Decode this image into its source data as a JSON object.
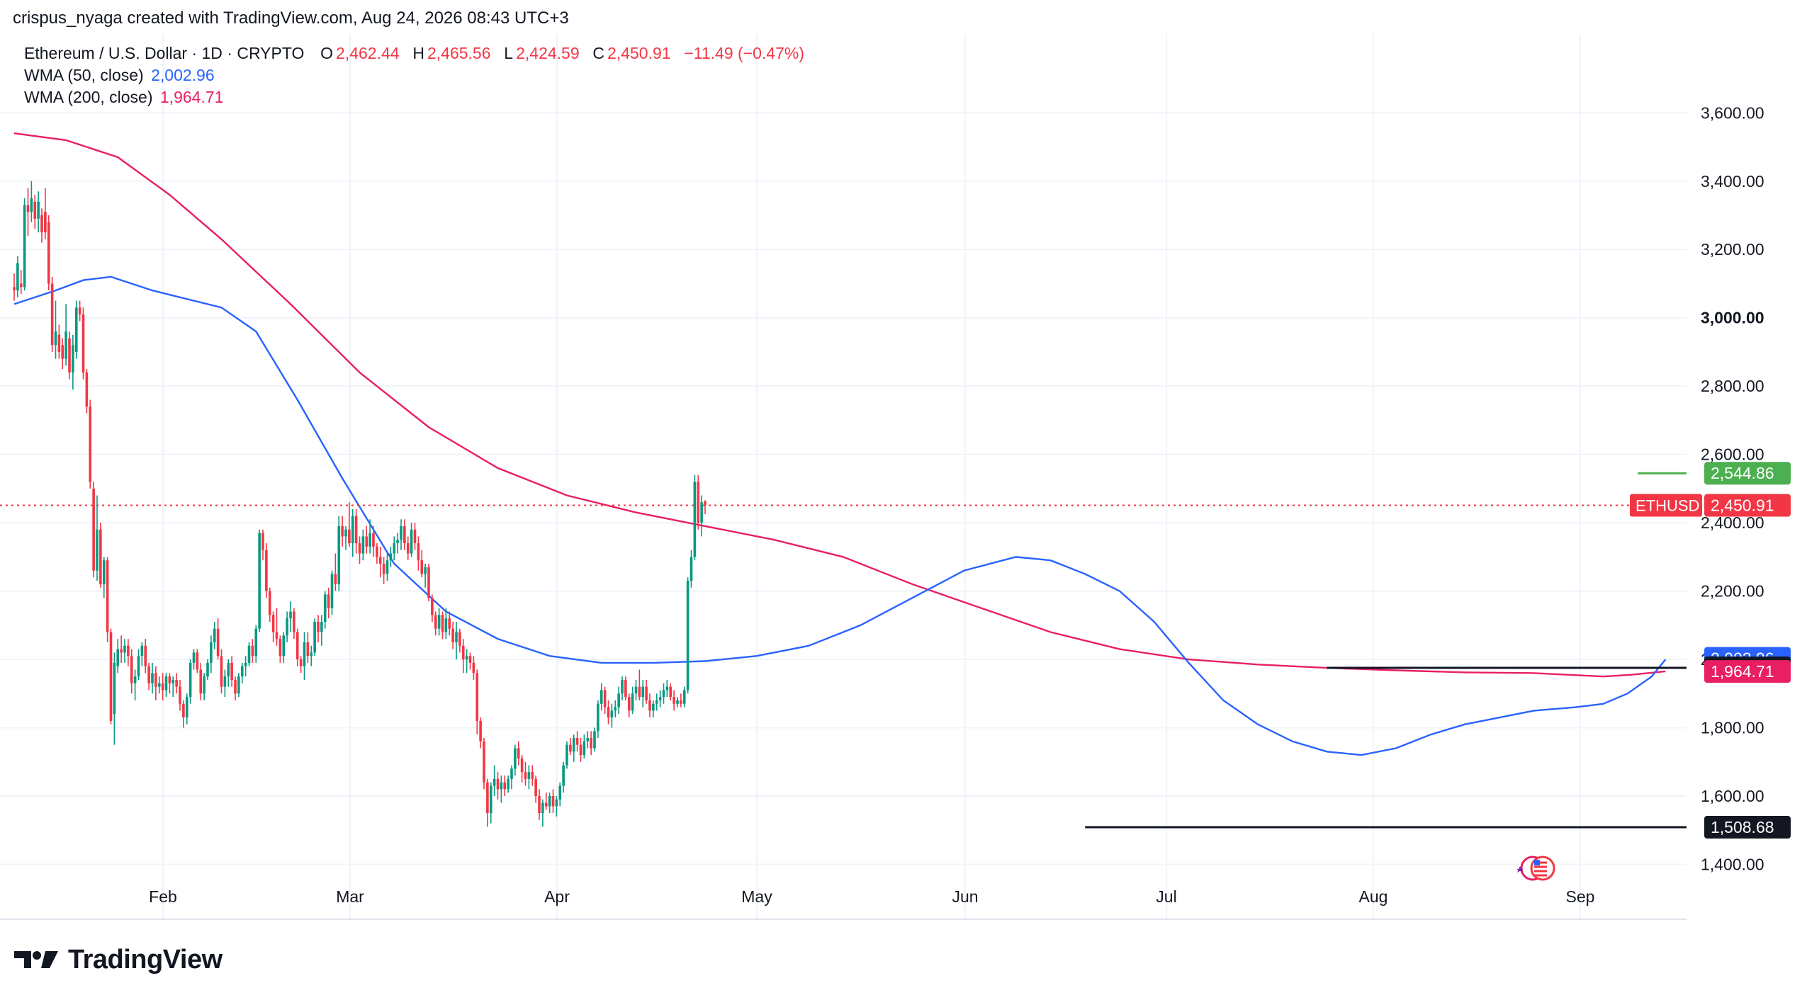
{
  "attribution": "crispus_nyaga created with TradingView.com, Aug 24, 2026 08:43 UTC+3",
  "legend": {
    "symbol": "Ethereum / U.S. Dollar · 1D · CRYPTO",
    "o_label": "O",
    "o_value": "2,462.44",
    "h_label": "H",
    "h_value": "2,465.56",
    "l_label": "L",
    "l_value": "2,424.59",
    "c_label": "C",
    "c_value": "2,450.91",
    "change": "−11.49 (−0.47%)",
    "wma50_label": "WMA (50, close)",
    "wma50_value": "2,002.96",
    "wma200_label": "WMA (200, close)",
    "wma200_value": "1,964.71"
  },
  "brand": {
    "name": "TradingView"
  },
  "colors": {
    "up": "#089981",
    "down": "#f23645",
    "up_wick": "#089981",
    "wma50": "#2962ff",
    "wma200": "#e91e63",
    "grid": "#f0f3fa",
    "last_price": "#f23645",
    "resistance_green": "#4caf50",
    "level_black": "#131722"
  },
  "chart_data": {
    "type": "candlestick",
    "symbol": "ETHUSD",
    "timeframe": "1D",
    "x_ticks": [
      "Feb",
      "Mar",
      "Apr",
      "May",
      "Jun",
      "Jul",
      "Aug",
      "Sep"
    ],
    "y_ticks": [
      "1,400.00",
      "1,600.00",
      "1,800.00",
      "2,000.00",
      "2,200.00",
      "2,400.00",
      "2,600.00",
      "2,800.00",
      "3,000.00",
      "3,200.00",
      "3,400.00",
      "3,600.00"
    ],
    "ylim": [
      1260,
      3810
    ],
    "grid": true,
    "price_labels": {
      "last": {
        "tag": "ETHUSD",
        "value": "2,450.91",
        "y": 2450.91
      },
      "high_level": {
        "value": "2,544.86",
        "y": 2544.86
      },
      "wma50": {
        "value": "2,002.96",
        "y": 2002.96
      },
      "level_mid": {
        "value": "1,975.32",
        "y": 1975.32
      },
      "wma200": {
        "value": "1,964.71",
        "y": 1964.71
      },
      "level_low": {
        "value": "1,508.68",
        "y": 1508.68
      }
    },
    "ohlc": [
      [
        3090,
        3130,
        3050,
        3080
      ],
      [
        3080,
        3180,
        3060,
        3160
      ],
      [
        3100,
        3140,
        3070,
        3090
      ],
      [
        3090,
        3350,
        3080,
        3330
      ],
      [
        3330,
        3380,
        3240,
        3310
      ],
      [
        3310,
        3400,
        3280,
        3350
      ],
      [
        3340,
        3360,
        3260,
        3290
      ],
      [
        3290,
        3370,
        3250,
        3340
      ],
      [
        3300,
        3320,
        3220,
        3250
      ],
      [
        3310,
        3380,
        3230,
        3250
      ],
      [
        3280,
        3300,
        3080,
        3100
      ],
      [
        3100,
        3120,
        2900,
        2920
      ],
      [
        2920,
        3050,
        2880,
        2960
      ],
      [
        2950,
        2980,
        2880,
        2900
      ],
      [
        2920,
        2940,
        2850,
        2880
      ],
      [
        2880,
        3040,
        2860,
        2960
      ],
      [
        2940,
        2960,
        2820,
        2840
      ],
      [
        2840,
        2950,
        2790,
        2920
      ],
      [
        2900,
        3050,
        2880,
        3030
      ],
      [
        3030,
        3050,
        2990,
        3010
      ],
      [
        3010,
        3030,
        2820,
        2840
      ],
      [
        2840,
        2850,
        2720,
        2740
      ],
      [
        2740,
        2760,
        2500,
        2520
      ],
      [
        2500,
        2520,
        2240,
        2260
      ],
      [
        2260,
        2480,
        2230,
        2380
      ],
      [
        2380,
        2400,
        2210,
        2220
      ],
      [
        2220,
        2300,
        2180,
        2290
      ],
      [
        2290,
        2300,
        2050,
        2080
      ],
      [
        2080,
        2090,
        1810,
        1820
      ],
      [
        1840,
        2020,
        1750,
        1990
      ],
      [
        1980,
        2060,
        1960,
        2030
      ],
      [
        2030,
        2070,
        1990,
        2020
      ],
      [
        2020,
        2060,
        1990,
        2040
      ],
      [
        2040,
        2060,
        1980,
        2010
      ],
      [
        2010,
        2030,
        1900,
        1930
      ],
      [
        1930,
        1970,
        1880,
        1950
      ],
      [
        1950,
        2030,
        1940,
        2010
      ],
      [
        2010,
        2050,
        1980,
        2040
      ],
      [
        2040,
        2060,
        1960,
        1980
      ],
      [
        1980,
        1990,
        1910,
        1930
      ],
      [
        1930,
        1990,
        1900,
        1960
      ],
      [
        1960,
        1980,
        1880,
        1920
      ],
      [
        1920,
        1950,
        1900,
        1930
      ],
      [
        1930,
        1960,
        1880,
        1910
      ],
      [
        1910,
        1960,
        1890,
        1950
      ],
      [
        1950,
        1960,
        1900,
        1930
      ],
      [
        1930,
        1950,
        1890,
        1940
      ],
      [
        1940,
        1960,
        1900,
        1920
      ],
      [
        1920,
        1940,
        1850,
        1870
      ],
      [
        1870,
        1880,
        1800,
        1830
      ],
      [
        1830,
        1900,
        1810,
        1890
      ],
      [
        1890,
        2000,
        1870,
        1990
      ],
      [
        1990,
        2030,
        1970,
        2020
      ],
      [
        2020,
        2030,
        1960,
        1970
      ],
      [
        1970,
        1990,
        1880,
        1900
      ],
      [
        1900,
        1960,
        1880,
        1950
      ],
      [
        1950,
        2000,
        1940,
        1990
      ],
      [
        1990,
        2070,
        1960,
        2050
      ],
      [
        2050,
        2110,
        2030,
        2090
      ],
      [
        2090,
        2120,
        2000,
        2010
      ],
      [
        2010,
        2030,
        1900,
        1920
      ],
      [
        1920,
        1970,
        1890,
        1950
      ],
      [
        1950,
        2000,
        1920,
        1990
      ],
      [
        1990,
        2010,
        1920,
        1940
      ],
      [
        1940,
        1950,
        1880,
        1900
      ],
      [
        1900,
        1960,
        1890,
        1950
      ],
      [
        1950,
        1990,
        1930,
        1980
      ],
      [
        1980,
        2010,
        1950,
        1990
      ],
      [
        1990,
        2050,
        1980,
        2040
      ],
      [
        2040,
        2060,
        1990,
        2010
      ],
      [
        2010,
        2100,
        1990,
        2090
      ],
      [
        2090,
        2380,
        2080,
        2370
      ],
      [
        2370,
        2380,
        2290,
        2320
      ],
      [
        2320,
        2340,
        2180,
        2200
      ],
      [
        2200,
        2210,
        2110,
        2130
      ],
      [
        2130,
        2140,
        2050,
        2080
      ],
      [
        2080,
        2150,
        2040,
        2060
      ],
      [
        2060,
        2070,
        1990,
        2010
      ],
      [
        2010,
        2080,
        1990,
        2070
      ],
      [
        2070,
        2140,
        2050,
        2120
      ],
      [
        2120,
        2170,
        2080,
        2140
      ],
      [
        2140,
        2150,
        2060,
        2080
      ],
      [
        2080,
        2090,
        1980,
        2000
      ],
      [
        2000,
        2010,
        1960,
        1980
      ],
      [
        1980,
        2080,
        1940,
        2050
      ],
      [
        2050,
        2080,
        1990,
        2010
      ],
      [
        2010,
        2040,
        1980,
        2020
      ],
      [
        2020,
        2120,
        2010,
        2110
      ],
      [
        2110,
        2130,
        2050,
        2080
      ],
      [
        2080,
        2130,
        2040,
        2110
      ],
      [
        2110,
        2200,
        2090,
        2190
      ],
      [
        2190,
        2210,
        2120,
        2150
      ],
      [
        2150,
        2260,
        2130,
        2250
      ],
      [
        2250,
        2310,
        2200,
        2220
      ],
      [
        2220,
        2420,
        2200,
        2390
      ],
      [
        2390,
        2420,
        2330,
        2360
      ],
      [
        2360,
        2390,
        2320,
        2380
      ],
      [
        2380,
        2460,
        2330,
        2340
      ],
      [
        2340,
        2440,
        2300,
        2420
      ],
      [
        2420,
        2440,
        2310,
        2340
      ],
      [
        2340,
        2360,
        2280,
        2310
      ],
      [
        2310,
        2380,
        2290,
        2360
      ],
      [
        2360,
        2390,
        2310,
        2330
      ],
      [
        2330,
        2410,
        2310,
        2370
      ],
      [
        2370,
        2390,
        2300,
        2330
      ],
      [
        2330,
        2340,
        2280,
        2300
      ],
      [
        2300,
        2330,
        2240,
        2280
      ],
      [
        2280,
        2300,
        2220,
        2250
      ],
      [
        2250,
        2310,
        2230,
        2290
      ],
      [
        2290,
        2330,
        2270,
        2310
      ],
      [
        2310,
        2360,
        2290,
        2340
      ],
      [
        2340,
        2370,
        2310,
        2350
      ],
      [
        2350,
        2410,
        2320,
        2390
      ],
      [
        2390,
        2410,
        2320,
        2340
      ],
      [
        2340,
        2360,
        2290,
        2310
      ],
      [
        2310,
        2400,
        2300,
        2380
      ],
      [
        2380,
        2400,
        2320,
        2340
      ],
      [
        2340,
        2360,
        2260,
        2290
      ],
      [
        2290,
        2320,
        2240,
        2250
      ],
      [
        2250,
        2280,
        2210,
        2270
      ],
      [
        2270,
        2280,
        2170,
        2180
      ],
      [
        2180,
        2190,
        2110,
        2130
      ],
      [
        2130,
        2140,
        2070,
        2090
      ],
      [
        2090,
        2150,
        2070,
        2130
      ],
      [
        2130,
        2140,
        2060,
        2080
      ],
      [
        2080,
        2150,
        2060,
        2120
      ],
      [
        2120,
        2140,
        2070,
        2090
      ],
      [
        2090,
        2110,
        2030,
        2050
      ],
      [
        2050,
        2110,
        2000,
        2080
      ],
      [
        2080,
        2090,
        2020,
        2040
      ],
      [
        2040,
        2060,
        1960,
        2000
      ],
      [
        2000,
        2030,
        1960,
        2010
      ],
      [
        2010,
        2020,
        1970,
        1990
      ],
      [
        1990,
        2010,
        1940,
        1960
      ],
      [
        1960,
        1970,
        1780,
        1820
      ],
      [
        1820,
        1830,
        1740,
        1760
      ],
      [
        1760,
        1770,
        1620,
        1640
      ],
      [
        1640,
        1650,
        1510,
        1550
      ],
      [
        1550,
        1640,
        1520,
        1630
      ],
      [
        1630,
        1690,
        1600,
        1650
      ],
      [
        1650,
        1670,
        1590,
        1620
      ],
      [
        1620,
        1660,
        1580,
        1640
      ],
      [
        1640,
        1660,
        1600,
        1620
      ],
      [
        1620,
        1660,
        1610,
        1650
      ],
      [
        1650,
        1690,
        1620,
        1680
      ],
      [
        1680,
        1750,
        1660,
        1740
      ],
      [
        1740,
        1760,
        1690,
        1710
      ],
      [
        1710,
        1720,
        1640,
        1670
      ],
      [
        1670,
        1700,
        1630,
        1650
      ],
      [
        1650,
        1690,
        1620,
        1670
      ],
      [
        1670,
        1690,
        1630,
        1650
      ],
      [
        1650,
        1660,
        1580,
        1600
      ],
      [
        1600,
        1620,
        1530,
        1550
      ],
      [
        1550,
        1590,
        1510,
        1580
      ],
      [
        1580,
        1610,
        1560,
        1570
      ],
      [
        1570,
        1610,
        1550,
        1600
      ],
      [
        1600,
        1620,
        1550,
        1570
      ],
      [
        1570,
        1600,
        1540,
        1590
      ],
      [
        1590,
        1640,
        1570,
        1630
      ],
      [
        1630,
        1700,
        1610,
        1690
      ],
      [
        1690,
        1760,
        1680,
        1750
      ],
      [
        1750,
        1770,
        1720,
        1730
      ],
      [
        1730,
        1780,
        1700,
        1770
      ],
      [
        1770,
        1790,
        1730,
        1750
      ],
      [
        1750,
        1770,
        1700,
        1720
      ],
      [
        1720,
        1780,
        1710,
        1760
      ],
      [
        1760,
        1790,
        1740,
        1770
      ],
      [
        1770,
        1790,
        1720,
        1740
      ],
      [
        1740,
        1800,
        1730,
        1790
      ],
      [
        1790,
        1880,
        1770,
        1870
      ],
      [
        1870,
        1930,
        1850,
        1910
      ],
      [
        1910,
        1920,
        1840,
        1860
      ],
      [
        1860,
        1880,
        1810,
        1830
      ],
      [
        1830,
        1870,
        1800,
        1850
      ],
      [
        1850,
        1880,
        1830,
        1860
      ],
      [
        1860,
        1920,
        1840,
        1900
      ],
      [
        1900,
        1950,
        1880,
        1940
      ],
      [
        1940,
        1950,
        1880,
        1890
      ],
      [
        1890,
        1900,
        1830,
        1850
      ],
      [
        1850,
        1920,
        1840,
        1900
      ],
      [
        1900,
        1940,
        1880,
        1920
      ],
      [
        1920,
        1970,
        1880,
        1890
      ],
      [
        1890,
        1940,
        1860,
        1920
      ],
      [
        1920,
        1940,
        1870,
        1880
      ],
      [
        1880,
        1900,
        1830,
        1850
      ],
      [
        1850,
        1880,
        1830,
        1870
      ],
      [
        1870,
        1900,
        1850,
        1880
      ],
      [
        1880,
        1910,
        1860,
        1890
      ],
      [
        1890,
        1930,
        1870,
        1910
      ],
      [
        1910,
        1940,
        1890,
        1920
      ],
      [
        1920,
        1930,
        1880,
        1890
      ],
      [
        1890,
        1910,
        1850,
        1870
      ],
      [
        1870,
        1890,
        1860,
        1880
      ],
      [
        1880,
        1900,
        1860,
        1870
      ],
      [
        1870,
        1920,
        1860,
        1910
      ],
      [
        1910,
        2240,
        1900,
        2230
      ],
      [
        2230,
        2320,
        2210,
        2300
      ],
      [
        2300,
        2540,
        2290,
        2520
      ],
      [
        2520,
        2540,
        2380,
        2400
      ],
      [
        2400,
        2480,
        2360,
        2460
      ],
      [
        2462,
        2466,
        2425,
        2451
      ]
    ],
    "wma50": [
      [
        0,
        3040
      ],
      [
        12,
        3080
      ],
      [
        20,
        3110
      ],
      [
        28,
        3120
      ],
      [
        40,
        3080
      ],
      [
        48,
        3060
      ],
      [
        60,
        3030
      ],
      [
        70,
        2960
      ],
      [
        82,
        2760
      ],
      [
        95,
        2530
      ],
      [
        110,
        2280
      ],
      [
        125,
        2140
      ],
      [
        140,
        2060
      ],
      [
        155,
        2010
      ],
      [
        170,
        1990
      ],
      [
        185,
        1990
      ],
      [
        200,
        1995
      ],
      [
        215,
        2010
      ],
      [
        230,
        2040
      ],
      [
        245,
        2100
      ],
      [
        260,
        2180
      ],
      [
        275,
        2260
      ],
      [
        290,
        2300
      ],
      [
        300,
        2290
      ],
      [
        310,
        2250
      ],
      [
        320,
        2200
      ],
      [
        330,
        2110
      ],
      [
        340,
        1990
      ],
      [
        350,
        1880
      ],
      [
        360,
        1810
      ],
      [
        370,
        1760
      ],
      [
        380,
        1730
      ],
      [
        390,
        1720
      ],
      [
        400,
        1740
      ],
      [
        410,
        1780
      ],
      [
        420,
        1810
      ],
      [
        430,
        1830
      ],
      [
        440,
        1850
      ],
      [
        452,
        1860
      ],
      [
        460,
        1870
      ],
      [
        467,
        1900
      ],
      [
        474,
        1950
      ],
      [
        478,
        2000
      ]
    ],
    "wma200": [
      [
        0,
        3540
      ],
      [
        15,
        3520
      ],
      [
        30,
        3470
      ],
      [
        45,
        3360
      ],
      [
        60,
        3230
      ],
      [
        80,
        3040
      ],
      [
        100,
        2840
      ],
      [
        120,
        2680
      ],
      [
        140,
        2560
      ],
      [
        160,
        2480
      ],
      [
        180,
        2430
      ],
      [
        200,
        2390
      ],
      [
        220,
        2350
      ],
      [
        240,
        2300
      ],
      [
        260,
        2220
      ],
      [
        280,
        2150
      ],
      [
        300,
        2080
      ],
      [
        320,
        2030
      ],
      [
        340,
        2000
      ],
      [
        360,
        1985
      ],
      [
        380,
        1975
      ],
      [
        400,
        1968
      ],
      [
        420,
        1962
      ],
      [
        440,
        1960
      ],
      [
        460,
        1950
      ],
      [
        468,
        1955
      ],
      [
        478,
        1965
      ]
    ],
    "horizontal_levels": [
      {
        "value": 2544.86,
        "x_start": 470,
        "color": "#4caf50"
      },
      {
        "value": 1975.32,
        "x_start": 380,
        "color": "#131722"
      },
      {
        "value": 1508.68,
        "x_start": 310,
        "color": "#131722"
      }
    ]
  }
}
